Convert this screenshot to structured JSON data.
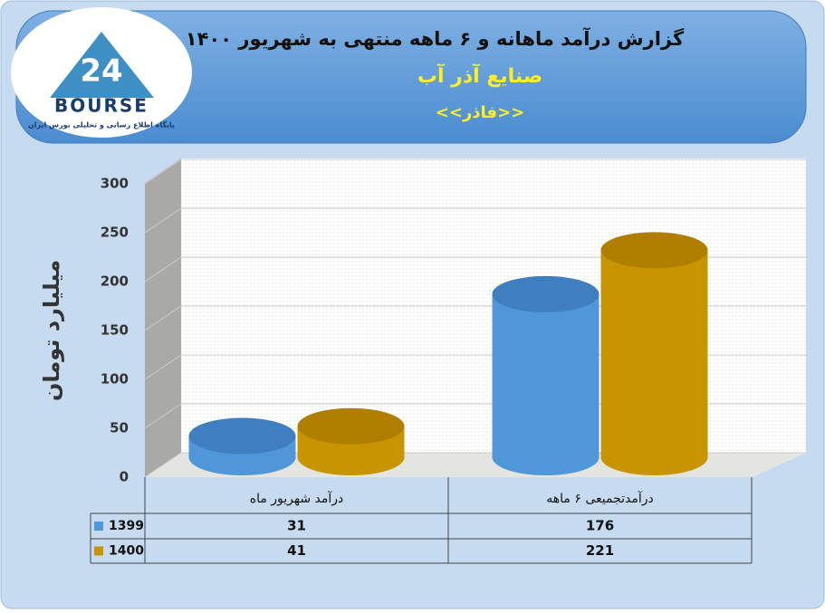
{
  "logo": {
    "mark": "24",
    "name": "BOURSE",
    "tagline": "پایگاه اطلاع رسانی و تحلیلی بورس ایران"
  },
  "chart_data": {
    "type": "cylinder-bar",
    "title": "گزارش درآمد ماهانه و ۶ ماهه منتهی به شهریور ۱۴۰۰",
    "subtitle": "صنایع آذر آب",
    "symbol": "<<فاذر>>",
    "y_label": "میلیارد تومان",
    "categories": [
      "درآمد شهریور  ماه",
      "درآمدتجمیعی ۶ ماهه"
    ],
    "series": [
      {
        "name": "1399",
        "color": "#4f97d9",
        "values": [
          31,
          176
        ]
      },
      {
        "name": "1400",
        "color": "#c89500",
        "values": [
          41,
          221
        ]
      }
    ],
    "ylim": [
      0,
      300
    ],
    "yticks": [
      0,
      50,
      100,
      150,
      200,
      250,
      300
    ],
    "grid": true,
    "data_table": true
  }
}
